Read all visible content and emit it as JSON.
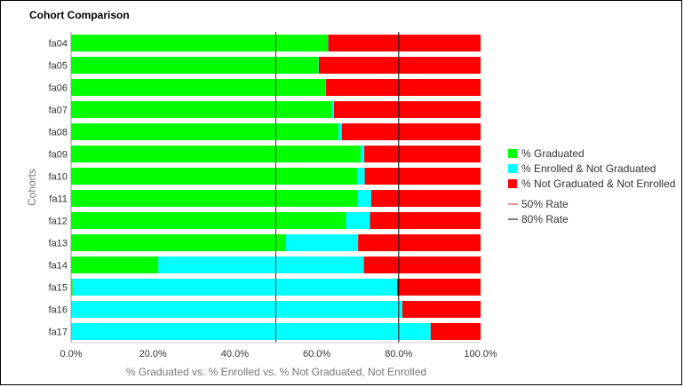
{
  "chart_data": {
    "type": "bar",
    "orientation": "horizontal",
    "stacked": true,
    "title": "Cohort Comparison",
    "xlabel": "% Graduated vs. % Enrolled vs. % Not Graduated, Not Enrolled",
    "ylabel": "Cohorts",
    "xlim": [
      0,
      100
    ],
    "xticks": [
      "0.0%",
      "20.0%",
      "40.0%",
      "60.0%",
      "80.0%",
      "100.0%"
    ],
    "categories": [
      "fa04",
      "fa05",
      "fa06",
      "fa07",
      "fa08",
      "fa09",
      "fa10",
      "fa11",
      "fa12",
      "fa13",
      "fa14",
      "fa15",
      "fa16",
      "fa17"
    ],
    "series": [
      {
        "name": "% Graduated",
        "color": "#00ff00",
        "values": [
          62.7,
          60.4,
          62.1,
          63.7,
          65.3,
          70.7,
          69.9,
          70.0,
          67.1,
          52.5,
          21.3,
          0.4,
          0.0,
          0.0
        ]
      },
      {
        "name": "% Enrolled & Not Graduated",
        "color": "#00ffff",
        "values": [
          0.1,
          0.1,
          0.1,
          0.5,
          0.8,
          0.9,
          1.8,
          3.3,
          5.9,
          17.6,
          50.2,
          79.2,
          80.9,
          87.8
        ]
      },
      {
        "name": "% Not Graduated & Not Enrolled",
        "color": "#ff0000",
        "values": [
          37.2,
          39.5,
          37.8,
          35.8,
          33.9,
          28.4,
          28.3,
          26.7,
          27.0,
          29.9,
          28.5,
          20.4,
          19.1,
          12.2
        ]
      }
    ],
    "reference_lines": [
      {
        "name": "50% Rate",
        "value": 50,
        "color": "#e07070"
      },
      {
        "name": "80% Rate",
        "value": 80,
        "color": "#555555"
      }
    ],
    "legend_position": "right",
    "grid": false
  }
}
